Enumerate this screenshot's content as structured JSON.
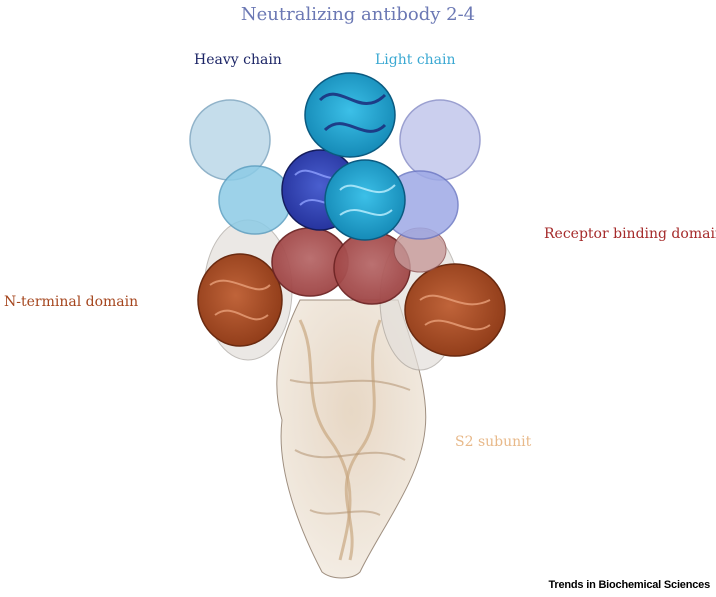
{
  "figure": {
    "title": "Neutralizing antibody 2-4",
    "labels": {
      "heavy_chain": "Heavy chain",
      "light_chain": "Light chain",
      "receptor_binding_domain": "Receptor binding domain",
      "n_terminal_domain": "N-terminal domain",
      "s2_subunit": "S2 subunit"
    },
    "journal": "Trends in Biochemical Sciences"
  },
  "colors": {
    "title": "#6b78b4",
    "heavy_chain": "#1c2566",
    "light_chain": "#3aa8d2",
    "receptor_binding_domain": "#a52a2a",
    "n_terminal_domain": "#a5461e",
    "s2_subunit": "#e8b98a",
    "journal": "#000000"
  }
}
